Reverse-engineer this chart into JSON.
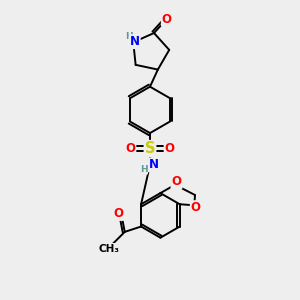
{
  "background_color": "#eeeeee",
  "bond_color": "#000000",
  "atom_colors": {
    "O": "#ff0000",
    "N": "#0000ff",
    "S": "#cccc00",
    "H": "#5a9a9a",
    "C": "#000000"
  },
  "lw": 1.4,
  "fs": 8.5,
  "fss": 6.5,
  "figsize": [
    3.0,
    3.0
  ],
  "dpi": 100
}
